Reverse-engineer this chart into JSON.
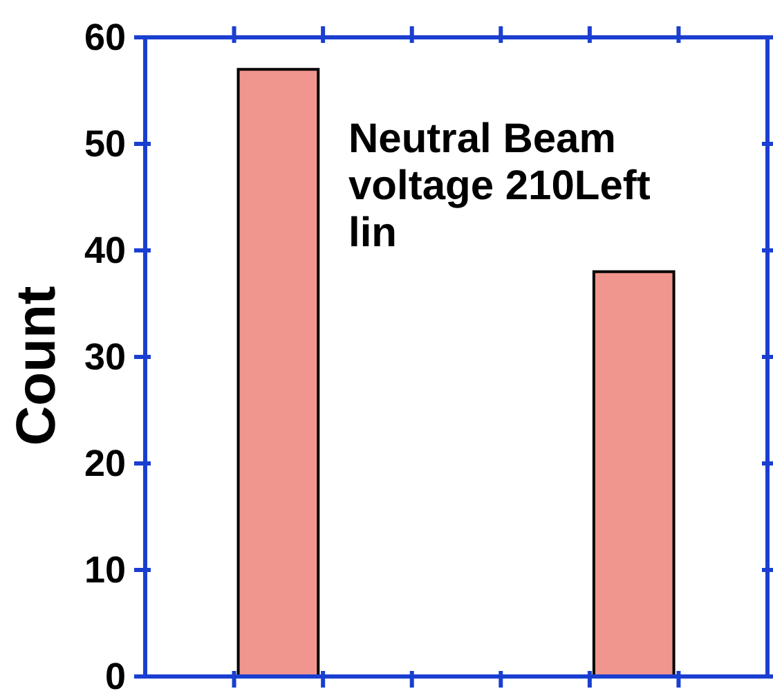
{
  "chart_data": {
    "type": "bar",
    "categories": [
      null,
      null,
      null,
      null,
      null,
      null,
      null
    ],
    "values": [
      null,
      57,
      null,
      null,
      null,
      38,
      null
    ],
    "color": "#f0968f",
    "ylabel": "Count",
    "ylim": [
      0,
      60
    ],
    "yticks": [
      0,
      10,
      20,
      30,
      40,
      50,
      60
    ],
    "annotations": [
      "Neutral Beam voltage 210Left lin"
    ],
    "tick_labels": "y"
  }
}
